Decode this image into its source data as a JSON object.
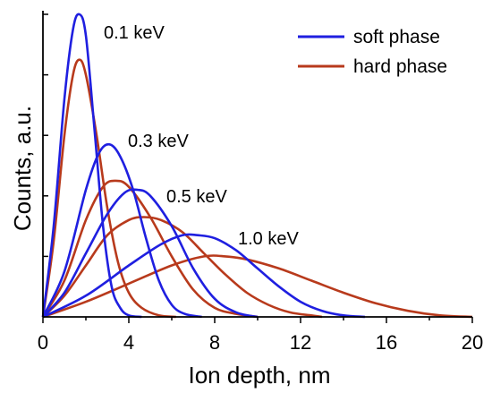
{
  "chart_data": {
    "type": "line",
    "title": "",
    "xlabel": "Ion depth, nm",
    "ylabel": "Counts, a.u.",
    "xlim": [
      0,
      20
    ],
    "ylim": [
      0,
      1
    ],
    "xticks": [
      "0",
      "4",
      "8",
      "12",
      "16",
      "20"
    ],
    "y_tick_labels_shown": false,
    "grid": false,
    "legend": {
      "placement": "top-right",
      "entries": [
        {
          "name": "soft phase",
          "color": "#1f1fe0"
        },
        {
          "name": "hard phase",
          "color": "#b83a1c"
        }
      ]
    },
    "annotations": [
      "0.1 keV",
      "0.3 keV",
      "0.5 keV",
      "1.0 keV"
    ],
    "series": [
      {
        "phase": "soft phase",
        "energy": "0.1 keV",
        "color": "#1f1fe0",
        "x": [
          0,
          0.5,
          1.0,
          1.4,
          1.7,
          2.0,
          2.4,
          2.8,
          3.2,
          3.6,
          4.0,
          4.6
        ],
        "y": [
          0,
          0.3,
          0.72,
          0.95,
          1.0,
          0.93,
          0.62,
          0.3,
          0.1,
          0.03,
          0.005,
          0
        ]
      },
      {
        "phase": "hard phase",
        "energy": "0.1 keV",
        "color": "#b83a1c",
        "x": [
          0,
          0.5,
          1.0,
          1.4,
          1.7,
          2.0,
          2.5,
          3.0,
          3.5,
          4.0,
          4.6,
          5.4,
          6.2
        ],
        "y": [
          0,
          0.25,
          0.6,
          0.8,
          0.85,
          0.8,
          0.6,
          0.36,
          0.18,
          0.08,
          0.03,
          0.005,
          0
        ]
      },
      {
        "phase": "soft phase",
        "energy": "0.3 keV",
        "color": "#1f1fe0",
        "x": [
          0,
          1.0,
          2.0,
          2.6,
          3.1,
          3.6,
          4.2,
          4.8,
          5.4,
          6.0,
          6.6,
          7.4
        ],
        "y": [
          0,
          0.15,
          0.42,
          0.54,
          0.57,
          0.53,
          0.42,
          0.26,
          0.12,
          0.04,
          0.01,
          0
        ]
      },
      {
        "phase": "hard phase",
        "energy": "0.3 keV",
        "color": "#b83a1c",
        "x": [
          0,
          1.0,
          2.0,
          2.8,
          3.4,
          4.0,
          5.0,
          6.0,
          7.0,
          8.0,
          9.0,
          10.0
        ],
        "y": [
          0,
          0.12,
          0.32,
          0.43,
          0.45,
          0.43,
          0.33,
          0.2,
          0.09,
          0.03,
          0.01,
          0
        ]
      },
      {
        "phase": "soft phase",
        "energy": "0.5 keV",
        "color": "#1f1fe0",
        "x": [
          0,
          1.0,
          2.0,
          3.0,
          3.8,
          4.4,
          5.0,
          6.0,
          7.0,
          8.0,
          9.0,
          10.0
        ],
        "y": [
          0,
          0.08,
          0.21,
          0.34,
          0.41,
          0.42,
          0.4,
          0.3,
          0.16,
          0.06,
          0.015,
          0
        ]
      },
      {
        "phase": "hard phase",
        "energy": "0.5 keV",
        "color": "#b83a1c",
        "x": [
          0,
          1.0,
          2.0,
          3.0,
          4.0,
          4.7,
          5.5,
          6.5,
          7.5,
          8.5,
          9.5,
          10.5,
          11.5,
          12.5,
          13.0
        ],
        "y": [
          0,
          0.07,
          0.17,
          0.27,
          0.32,
          0.33,
          0.32,
          0.28,
          0.21,
          0.14,
          0.08,
          0.04,
          0.015,
          0.005,
          0
        ]
      },
      {
        "phase": "soft phase",
        "energy": "1.0 keV",
        "color": "#1f1fe0",
        "x": [
          0,
          2.0,
          4.0,
          5.5,
          6.5,
          7.2,
          8.0,
          9.0,
          10.0,
          11.0,
          12.0,
          13.0,
          14.0,
          15.0
        ],
        "y": [
          0,
          0.07,
          0.17,
          0.24,
          0.27,
          0.27,
          0.26,
          0.22,
          0.16,
          0.1,
          0.05,
          0.02,
          0.005,
          0
        ]
      },
      {
        "phase": "hard phase",
        "energy": "1.0 keV",
        "color": "#b83a1c",
        "x": [
          0,
          2.0,
          4.0,
          6.0,
          7.5,
          8.5,
          9.5,
          11.0,
          12.5,
          14.0,
          15.5,
          17.0,
          18.5,
          20.0
        ],
        "y": [
          0,
          0.05,
          0.11,
          0.17,
          0.2,
          0.2,
          0.19,
          0.16,
          0.12,
          0.08,
          0.045,
          0.02,
          0.005,
          0
        ]
      }
    ]
  }
}
